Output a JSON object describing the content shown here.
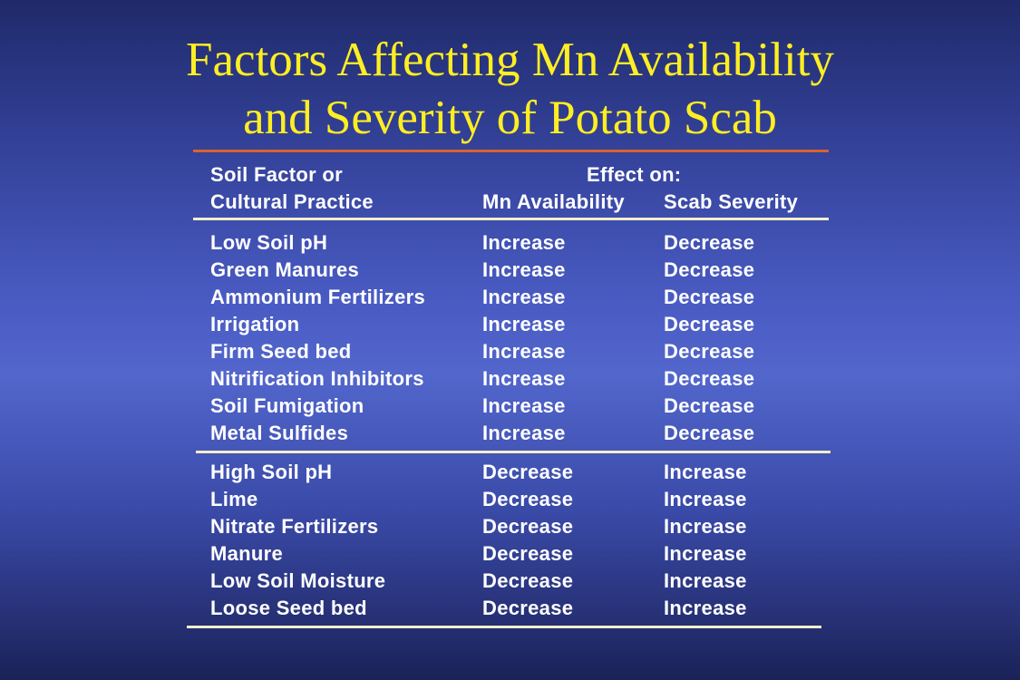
{
  "slide": {
    "title_line1": "Factors Affecting Mn Availability",
    "title_line2": "and Severity of Potato Scab"
  },
  "table": {
    "header": {
      "factor_line1": "Soil Factor or",
      "factor_line2": "Cultural Practice",
      "effect_on": "Effect on:",
      "mn_availability": "Mn Availability",
      "scab_severity": "Scab Severity"
    },
    "group1": [
      {
        "factor": "Low Soil pH",
        "mn": "Increase",
        "scab": "Decrease"
      },
      {
        "factor": "Green Manures",
        "mn": "Increase",
        "scab": "Decrease"
      },
      {
        "factor": "Ammonium Fertilizers",
        "mn": "Increase",
        "scab": "Decrease"
      },
      {
        "factor": "Irrigation",
        "mn": "Increase",
        "scab": "Decrease"
      },
      {
        "factor": "Firm Seed bed",
        "mn": "Increase",
        "scab": "Decrease"
      },
      {
        "factor": "Nitrification Inhibitors",
        "mn": "Increase",
        "scab": "Decrease"
      },
      {
        "factor": "Soil Fumigation",
        "mn": "Increase",
        "scab": "Decrease"
      },
      {
        "factor": "Metal Sulfides",
        "mn": "Increase",
        "scab": "Decrease"
      }
    ],
    "group2": [
      {
        "factor": "High Soil pH",
        "mn": "Decrease",
        "scab": "Increase"
      },
      {
        "factor": "Lime",
        "mn": "Decrease",
        "scab": "Increase"
      },
      {
        "factor": "Nitrate Fertilizers",
        "mn": "Decrease",
        "scab": "Increase"
      },
      {
        "factor": "Manure",
        "mn": "Decrease",
        "scab": "Increase"
      },
      {
        "factor": "Low Soil Moisture",
        "mn": "Decrease",
        "scab": "Increase"
      },
      {
        "factor": "Loose Seed bed",
        "mn": "Decrease",
        "scab": "Increase"
      }
    ]
  },
  "colors": {
    "title": "#ffee22",
    "text": "#ffffff",
    "accent_rule": "#d8642a",
    "rule": "#f2eec8"
  }
}
